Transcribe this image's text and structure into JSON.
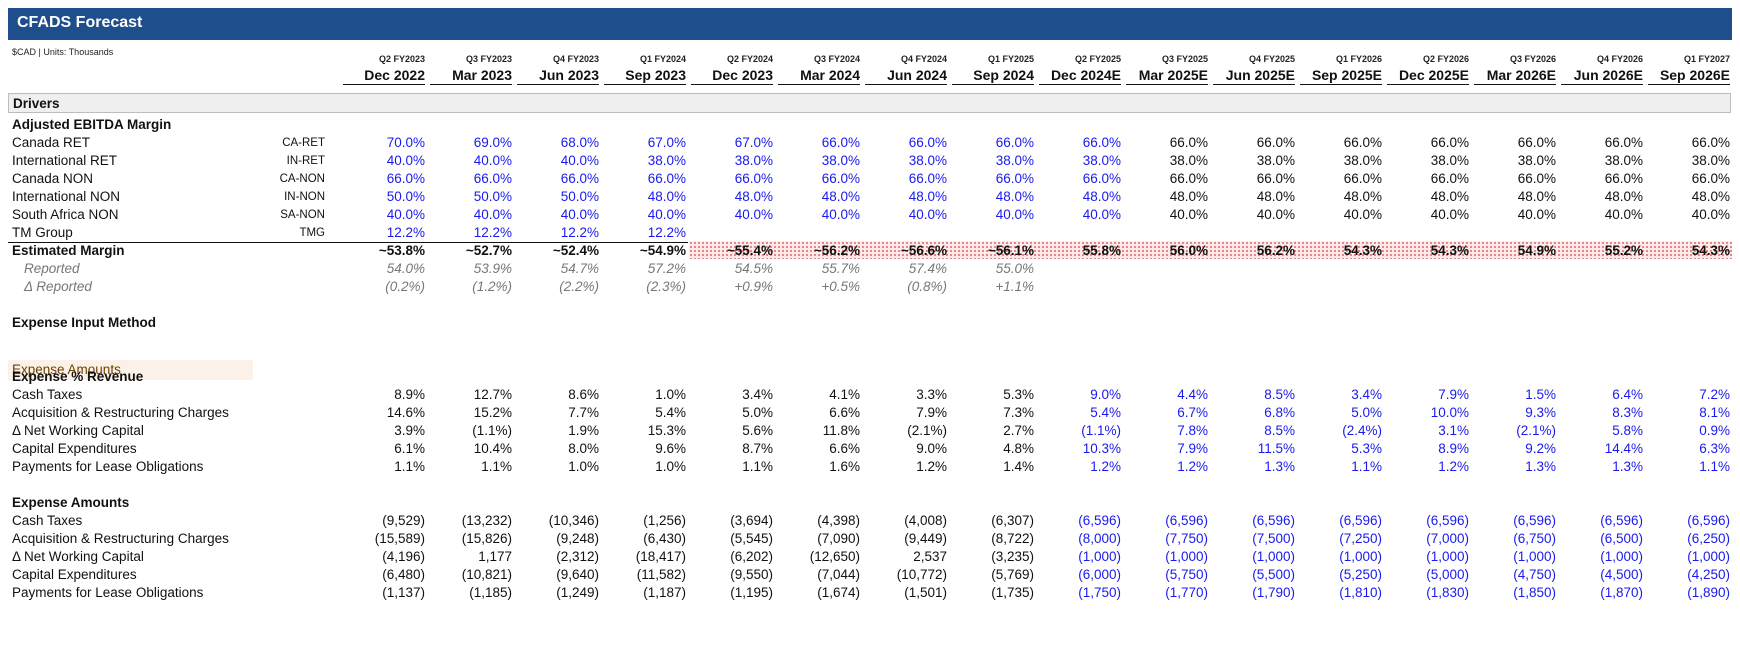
{
  "title": "CFADS Forecast",
  "units": "$CAD | Units: Thousands",
  "periods": [
    {
      "q": "Q2 FY2023",
      "d": "Dec 2022"
    },
    {
      "q": "Q3 FY2023",
      "d": "Mar 2023"
    },
    {
      "q": "Q4 FY2023",
      "d": "Jun 2023"
    },
    {
      "q": "Q1 FY2024",
      "d": "Sep 2023"
    },
    {
      "q": "Q2 FY2024",
      "d": "Dec 2023"
    },
    {
      "q": "Q3 FY2024",
      "d": "Mar 2024"
    },
    {
      "q": "Q4 FY2024",
      "d": "Jun 2024"
    },
    {
      "q": "Q1 FY2025",
      "d": "Sep 2024"
    },
    {
      "q": "Q2 FY2025",
      "d": "Dec 2024E"
    },
    {
      "q": "Q3 FY2025",
      "d": "Mar 2025E"
    },
    {
      "q": "Q4 FY2025",
      "d": "Jun 2025E"
    },
    {
      "q": "Q1 FY2026",
      "d": "Sep 2025E"
    },
    {
      "q": "Q2 FY2026",
      "d": "Dec 2025E"
    },
    {
      "q": "Q3 FY2026",
      "d": "Mar 2026E"
    },
    {
      "q": "Q4 FY2026",
      "d": "Jun 2026E"
    },
    {
      "q": "Q1 FY2027",
      "d": "Sep 2026E"
    }
  ],
  "drivers_label": "Drivers",
  "adj_ebitda": {
    "heading": "Adjusted EBITDA Margin",
    "rows": [
      {
        "label": "Canada RET",
        "code": "CA-RET",
        "values": [
          "70.0%",
          "69.0%",
          "68.0%",
          "67.0%",
          "67.0%",
          "66.0%",
          "66.0%",
          "66.0%",
          "66.0%",
          "66.0%",
          "66.0%",
          "66.0%",
          "66.0%",
          "66.0%",
          "66.0%",
          "66.0%"
        ],
        "blue_count": 9
      },
      {
        "label": "International RET",
        "code": "IN-RET",
        "values": [
          "40.0%",
          "40.0%",
          "40.0%",
          "38.0%",
          "38.0%",
          "38.0%",
          "38.0%",
          "38.0%",
          "38.0%",
          "38.0%",
          "38.0%",
          "38.0%",
          "38.0%",
          "38.0%",
          "38.0%",
          "38.0%"
        ],
        "blue_count": 9
      },
      {
        "label": "Canada NON",
        "code": "CA-NON",
        "values": [
          "66.0%",
          "66.0%",
          "66.0%",
          "66.0%",
          "66.0%",
          "66.0%",
          "66.0%",
          "66.0%",
          "66.0%",
          "66.0%",
          "66.0%",
          "66.0%",
          "66.0%",
          "66.0%",
          "66.0%",
          "66.0%"
        ],
        "blue_count": 9
      },
      {
        "label": "International NON",
        "code": "IN-NON",
        "values": [
          "50.0%",
          "50.0%",
          "50.0%",
          "48.0%",
          "48.0%",
          "48.0%",
          "48.0%",
          "48.0%",
          "48.0%",
          "48.0%",
          "48.0%",
          "48.0%",
          "48.0%",
          "48.0%",
          "48.0%",
          "48.0%"
        ],
        "blue_count": 9
      },
      {
        "label": "South Africa NON",
        "code": "SA-NON",
        "values": [
          "40.0%",
          "40.0%",
          "40.0%",
          "40.0%",
          "40.0%",
          "40.0%",
          "40.0%",
          "40.0%",
          "40.0%",
          "40.0%",
          "40.0%",
          "40.0%",
          "40.0%",
          "40.0%",
          "40.0%",
          "40.0%"
        ],
        "blue_count": 9
      },
      {
        "label": "TM Group",
        "code": "TMG",
        "values": [
          "12.2%",
          "12.2%",
          "12.2%",
          "12.2%"
        ],
        "blue_count": 4
      }
    ],
    "estimated": {
      "label": "Estimated Margin",
      "values": [
        "~53.8%",
        "~52.7%",
        "~52.4%",
        "~54.9%",
        "~55.4%",
        "~56.2%",
        "~56.6%",
        "~56.1%",
        "55.8%",
        "56.0%",
        "56.2%",
        "54.3%",
        "54.3%",
        "54.9%",
        "55.2%",
        "54.3%"
      ]
    },
    "reported": {
      "label": "Reported",
      "values": [
        "54.0%",
        "53.9%",
        "54.7%",
        "57.2%",
        "54.5%",
        "55.7%",
        "57.4%",
        "55.0%"
      ]
    },
    "delta_reported": {
      "label": "Δ Reported",
      "values": [
        "(0.2%)",
        "(1.2%)",
        "(2.2%)",
        "(2.3%)",
        "+0.9%",
        "+0.5%",
        "(0.8%)",
        "+1.1%"
      ]
    }
  },
  "expense_input": {
    "heading": "Expense Input Method",
    "value": "Expense Amounts"
  },
  "expense_pct": {
    "heading": "Expense % Revenue",
    "rows": [
      {
        "label": "Cash Taxes",
        "values": [
          "8.9%",
          "12.7%",
          "8.6%",
          "1.0%",
          "3.4%",
          "4.1%",
          "3.3%",
          "5.3%",
          "9.0%",
          "4.4%",
          "8.5%",
          "3.4%",
          "7.9%",
          "1.5%",
          "6.4%",
          "7.2%"
        ]
      },
      {
        "label": "Acquisition & Restructuring Charges",
        "values": [
          "14.6%",
          "15.2%",
          "7.7%",
          "5.4%",
          "5.0%",
          "6.6%",
          "7.9%",
          "7.3%",
          "5.4%",
          "6.7%",
          "6.8%",
          "5.0%",
          "10.0%",
          "9.3%",
          "8.3%",
          "8.1%"
        ]
      },
      {
        "label": "Δ Net Working Capital",
        "values": [
          "3.9%",
          "(1.1%)",
          "1.9%",
          "15.3%",
          "5.6%",
          "11.8%",
          "(2.1%)",
          "2.7%",
          "(1.1%)",
          "7.8%",
          "8.5%",
          "(2.4%)",
          "3.1%",
          "(2.1%)",
          "5.8%",
          "0.9%"
        ]
      },
      {
        "label": "Capital Expenditures",
        "values": [
          "6.1%",
          "10.4%",
          "8.0%",
          "9.6%",
          "8.7%",
          "6.6%",
          "9.0%",
          "4.8%",
          "10.3%",
          "7.9%",
          "11.5%",
          "5.3%",
          "8.9%",
          "9.2%",
          "14.4%",
          "6.3%"
        ]
      },
      {
        "label": "Payments for Lease Obligations",
        "values": [
          "1.1%",
          "1.1%",
          "1.0%",
          "1.0%",
          "1.1%",
          "1.6%",
          "1.2%",
          "1.4%",
          "1.2%",
          "1.2%",
          "1.3%",
          "1.1%",
          "1.2%",
          "1.3%",
          "1.3%",
          "1.1%"
        ]
      }
    ]
  },
  "expense_amt": {
    "heading": "Expense Amounts",
    "rows": [
      {
        "label": "Cash Taxes",
        "values": [
          "(9,529)",
          "(13,232)",
          "(10,346)",
          "(1,256)",
          "(3,694)",
          "(4,398)",
          "(4,008)",
          "(6,307)",
          "(6,596)",
          "(6,596)",
          "(6,596)",
          "(6,596)",
          "(6,596)",
          "(6,596)",
          "(6,596)",
          "(6,596)"
        ]
      },
      {
        "label": "Acquisition & Restructuring Charges",
        "values": [
          "(15,589)",
          "(15,826)",
          "(9,248)",
          "(6,430)",
          "(5,545)",
          "(7,090)",
          "(9,449)",
          "(8,722)",
          "(8,000)",
          "(7,750)",
          "(7,500)",
          "(7,250)",
          "(7,000)",
          "(6,750)",
          "(6,500)",
          "(6,250)"
        ]
      },
      {
        "label": "Δ Net Working Capital",
        "values": [
          "(4,196)",
          "1,177",
          "(2,312)",
          "(18,417)",
          "(6,202)",
          "(12,650)",
          "2,537",
          "(3,235)",
          "(1,000)",
          "(1,000)",
          "(1,000)",
          "(1,000)",
          "(1,000)",
          "(1,000)",
          "(1,000)",
          "(1,000)"
        ]
      },
      {
        "label": "Capital Expenditures",
        "values": [
          "(6,480)",
          "(10,821)",
          "(9,640)",
          "(11,582)",
          "(9,550)",
          "(7,044)",
          "(10,772)",
          "(5,769)",
          "(6,000)",
          "(5,750)",
          "(5,500)",
          "(5,250)",
          "(5,000)",
          "(4,750)",
          "(4,500)",
          "(4,250)"
        ]
      },
      {
        "label": "Payments for Lease Obligations",
        "values": [
          "(1,137)",
          "(1,185)",
          "(1,249)",
          "(1,187)",
          "(1,195)",
          "(1,674)",
          "(1,501)",
          "(1,735)",
          "(1,750)",
          "(1,770)",
          "(1,790)",
          "(1,810)",
          "(1,830)",
          "(1,850)",
          "(1,870)",
          "(1,890)"
        ]
      }
    ]
  },
  "colors": {
    "header_bg": "#1f4e8c",
    "input_blue": "#1a1aee",
    "hatch": "#d66"
  }
}
